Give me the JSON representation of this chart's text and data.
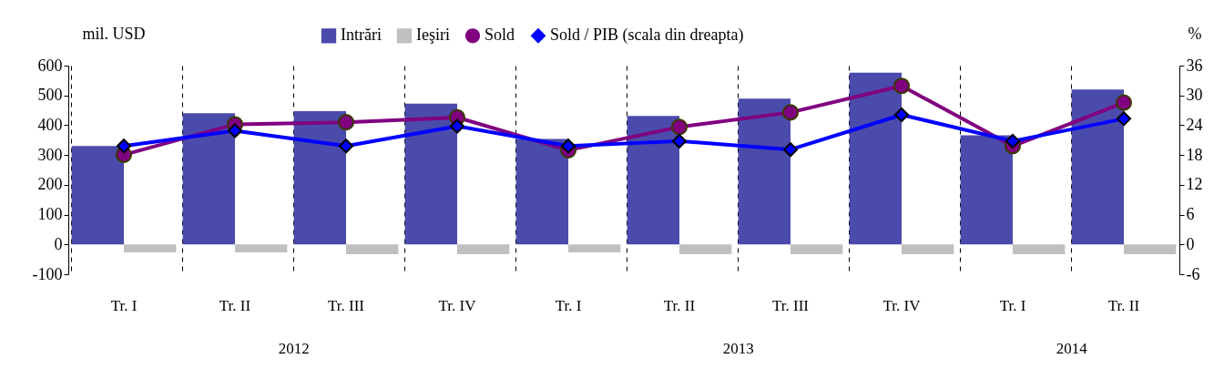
{
  "chart_data": {
    "type": "bar",
    "ylabel": "mil. USD",
    "y2label": "%",
    "categories": [
      "Tr. I",
      "Tr. II",
      "Tr. III",
      "Tr. IV",
      "Tr. I",
      "Tr. II",
      "Tr. III",
      "Tr. IV",
      "Tr. I",
      "Tr. II"
    ],
    "annotations": [
      "2012",
      "2013",
      "2014"
    ],
    "series": [
      {
        "name": "Intrări",
        "color": "#4b4bab",
        "values": [
          330,
          440,
          447,
          472,
          354,
          431,
          489,
          576,
          366,
          520
        ]
      },
      {
        "name": "Ieşiri",
        "color": "#c0c0c0",
        "values": [
          -27,
          -27,
          -33,
          -33,
          -27,
          -33,
          -33,
          -33,
          -33,
          -33
        ]
      },
      {
        "name": "Sold",
        "type": "line",
        "color": "#800080",
        "marker": "circle",
        "values": [
          301,
          403,
          410,
          426,
          316,
          394,
          443,
          532,
          330,
          476
        ]
      },
      {
        "name": "Sold / PIB (scala din dreapta)",
        "type": "line",
        "color": "#0000ff",
        "marker": "diamond",
        "axis": "y2",
        "values": [
          19.8,
          22.9,
          19.8,
          23.8,
          19.8,
          20.8,
          19.1,
          26.1,
          20.8,
          25.3
        ]
      }
    ],
    "ylim": [
      -100,
      600
    ],
    "yticks": [
      -100,
      0,
      100,
      200,
      300,
      400,
      500,
      600
    ],
    "y2lim": [
      -6,
      36
    ],
    "y2ticks": [
      -6,
      0,
      6,
      12,
      18,
      24,
      30,
      36
    ],
    "grid": "x",
    "legend": "top"
  }
}
